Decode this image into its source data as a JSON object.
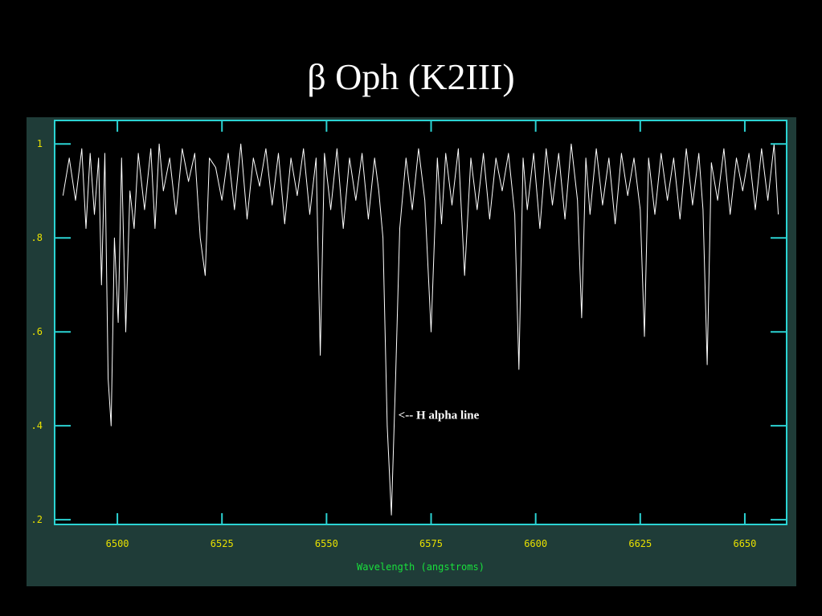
{
  "title": "β Oph (K2III)",
  "chart_data": {
    "type": "line",
    "title": "",
    "xlabel": "Wavelength (angstroms)",
    "ylabel": "",
    "xlim": [
      6485,
      6660
    ],
    "ylim": [
      0.19,
      1.05
    ],
    "x_ticks": [
      6500,
      6525,
      6550,
      6575,
      6600,
      6625,
      6650
    ],
    "x_tick_labels": [
      "6500",
      "6525",
      "6550",
      "6575",
      "6600",
      "6625",
      "6650"
    ],
    "y_ticks": [
      1,
      0.8,
      0.6,
      0.4,
      0.2
    ],
    "y_tick_labels": [
      "1",
      ".8",
      ".6",
      ".4",
      ".2"
    ],
    "grid": false,
    "colors": {
      "panel": "#1f3c38",
      "plot_background": "#000000",
      "frame": "#2bd3d3",
      "line": "#ffffff",
      "tick_labels": "#e8e000",
      "axis_title": "#19e03c"
    },
    "series": [
      {
        "x": [
          6487.0,
          6488.5,
          6490.0,
          6491.5,
          6492.5,
          6493.5,
          6494.5,
          6495.5,
          6496.2,
          6497.0,
          6497.8,
          6498.5,
          6499.3,
          6500.2,
          6501.0,
          6502.0,
          6503.0,
          6504.0,
          6505.0,
          6506.5,
          6508.0,
          6509.0,
          6510.0,
          6511.0,
          6512.5,
          6514.0,
          6515.5,
          6517.0,
          6518.5,
          6519.8,
          6521.0,
          6522.0,
          6523.5,
          6525.0,
          6526.5,
          6528.0,
          6529.5,
          6531.0,
          6532.5,
          6534.0,
          6535.5,
          6537.0,
          6538.5,
          6540.0,
          6541.5,
          6543.0,
          6544.5,
          6546.0,
          6547.5,
          6548.5,
          6549.5,
          6551.0,
          6552.5,
          6554.0,
          6555.5,
          6557.0,
          6558.5,
          6560.0,
          6561.5,
          6562.5,
          6563.5,
          6564.5,
          6565.5,
          6566.5,
          6567.5,
          6569.0,
          6570.5,
          6572.0,
          6573.5,
          6575.0,
          6576.5,
          6577.5,
          6578.5,
          6580.0,
          6581.5,
          6583.0,
          6584.5,
          6586.0,
          6587.5,
          6589.0,
          6590.5,
          6592.0,
          6593.5,
          6595.0,
          6596.0,
          6597.0,
          6598.0,
          6599.5,
          6601.0,
          6602.5,
          6604.0,
          6605.5,
          6607.0,
          6608.5,
          6610.0,
          6611.0,
          6612.0,
          6613.0,
          6614.5,
          6616.0,
          6617.5,
          6619.0,
          6620.5,
          6622.0,
          6623.5,
          6625.0,
          6626.0,
          6627.0,
          6628.5,
          6630.0,
          6631.5,
          6633.0,
          6634.5,
          6636.0,
          6637.5,
          6639.0,
          6640.0,
          6641.0,
          6642.0,
          6643.5,
          6645.0,
          6646.5,
          6648.0,
          6649.5,
          6651.0,
          6652.5,
          6654.0,
          6655.5,
          6657.0,
          6658.0
        ],
        "y": [
          0.89,
          0.97,
          0.88,
          0.99,
          0.82,
          0.98,
          0.85,
          0.97,
          0.7,
          0.98,
          0.5,
          0.4,
          0.8,
          0.62,
          0.97,
          0.6,
          0.9,
          0.82,
          0.98,
          0.86,
          0.99,
          0.82,
          1.0,
          0.9,
          0.97,
          0.85,
          0.99,
          0.92,
          0.98,
          0.8,
          0.72,
          0.97,
          0.95,
          0.88,
          0.98,
          0.86,
          1.0,
          0.84,
          0.97,
          0.91,
          0.99,
          0.87,
          0.98,
          0.83,
          0.97,
          0.89,
          0.99,
          0.85,
          0.97,
          0.55,
          0.98,
          0.86,
          0.99,
          0.82,
          0.97,
          0.88,
          0.98,
          0.84,
          0.97,
          0.9,
          0.8,
          0.4,
          0.21,
          0.5,
          0.82,
          0.97,
          0.86,
          0.99,
          0.88,
          0.6,
          0.97,
          0.83,
          0.98,
          0.87,
          0.99,
          0.72,
          0.97,
          0.86,
          0.98,
          0.84,
          0.97,
          0.9,
          0.98,
          0.85,
          0.52,
          0.97,
          0.86,
          0.98,
          0.82,
          0.99,
          0.87,
          0.98,
          0.84,
          1.0,
          0.88,
          0.63,
          0.97,
          0.85,
          0.99,
          0.87,
          0.97,
          0.83,
          0.98,
          0.89,
          0.97,
          0.86,
          0.59,
          0.97,
          0.85,
          0.98,
          0.88,
          0.97,
          0.84,
          0.99,
          0.87,
          0.98,
          0.86,
          0.53,
          0.96,
          0.88,
          0.99,
          0.85,
          0.97,
          0.9,
          0.98,
          0.86,
          0.99,
          0.88,
          1.0,
          0.85
        ]
      }
    ],
    "annotations": [
      {
        "text": "<-- H alpha line",
        "x": 6566.0,
        "y": 0.415
      }
    ]
  }
}
